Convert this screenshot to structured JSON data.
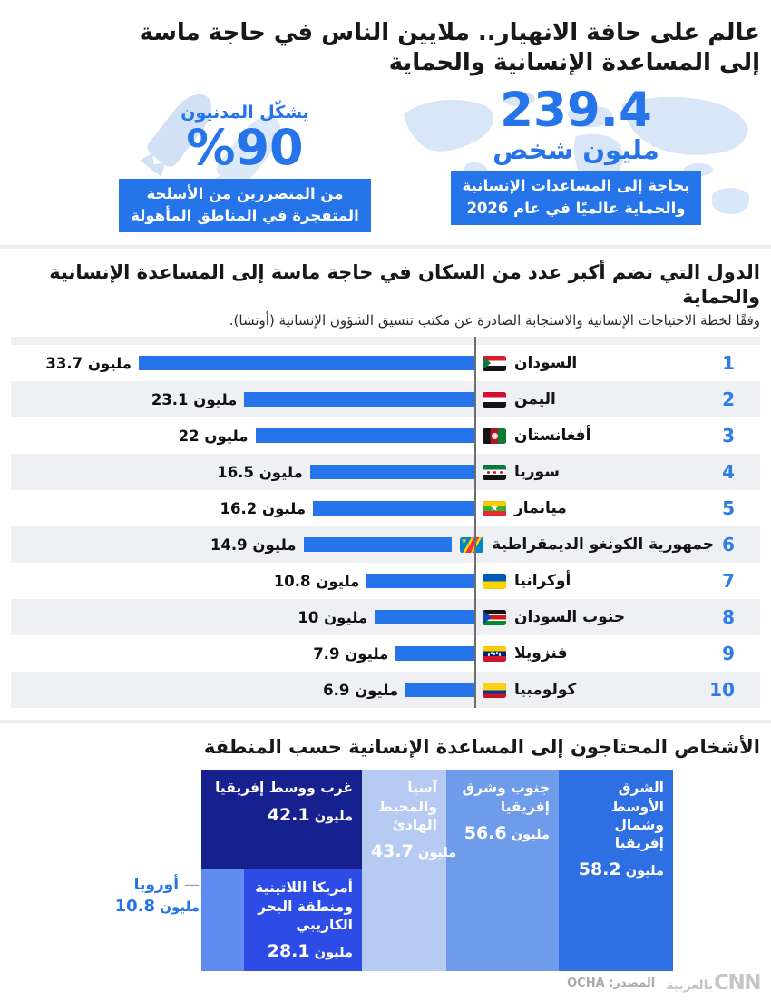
{
  "page": {
    "title": "عالم على حافة الانهيار.. ملايين الناس في حاجة ماسة إلى المساعدة الإنسانية والحماية"
  },
  "colors": {
    "accent_blue": "#2574e9",
    "pale_blue": "#d6e3f6",
    "row_stripe": "#eef0f3",
    "rank_blue": "#2e7ce8"
  },
  "stats": {
    "global": {
      "number": "239.4",
      "unit": "مليون شخص",
      "caption_line1": "بحاجة إلى المساعدات الإنسانية",
      "caption_line2": "والحماية عالميًا في عام 2026"
    },
    "civilians": {
      "lead": "يشكّل المدنيون",
      "number": "%90",
      "caption_line1": "من المتضررين من الأسلحة",
      "caption_line2": "المتفجرة في المناطق المأهولة"
    }
  },
  "chart_data": [
    {
      "type": "bar",
      "orientation": "horizontal-rtl",
      "title": "الدول التي تضم أكبر عدد من السكان في حاجة ماسة إلى المساعدة الإنسانية والحماية",
      "subtitle": "وفقًا لخطة الاحتياجات الإنسانية والاستجابة الصادرة عن مكتب تنسيق الشؤون الإنسانية (أوتشا).",
      "unit": "مليون",
      "xlim": [
        0,
        33.7
      ],
      "grid": false,
      "bar_color": "#2574e9",
      "categories": [
        "السودان",
        "اليمن",
        "أفغانستان",
        "سوريا",
        "ميانمار",
        "جمهورية الكونغو الديمقراطية",
        "أوكرانيا",
        "جنوب السودان",
        "فنزويلا",
        "كولومبيا"
      ],
      "values": [
        33.7,
        23.1,
        22,
        16.5,
        16.2,
        14.9,
        10.8,
        10,
        7.9,
        6.9
      ],
      "rows": [
        {
          "rank": "1",
          "name": "السودان",
          "flag": "sudan",
          "value": 33.7
        },
        {
          "rank": "2",
          "name": "اليمن",
          "flag": "yemen",
          "value": 23.1
        },
        {
          "rank": "3",
          "name": "أفغانستان",
          "flag": "afghanistan",
          "value": 22
        },
        {
          "rank": "4",
          "name": "سوريا",
          "flag": "syria",
          "value": 16.5
        },
        {
          "rank": "5",
          "name": "ميانمار",
          "flag": "myanmar",
          "value": 16.2
        },
        {
          "rank": "6",
          "name": "جمهورية الكونغو الديمقراطية",
          "flag": "drc",
          "value": 14.9
        },
        {
          "rank": "7",
          "name": "أوكرانيا",
          "flag": "ukraine",
          "value": 10.8
        },
        {
          "rank": "8",
          "name": "جنوب السودان",
          "flag": "south-sudan",
          "value": 10
        },
        {
          "rank": "9",
          "name": "فنزويلا",
          "flag": "venezuela",
          "value": 7.9
        },
        {
          "rank": "10",
          "name": "كولومبيا",
          "flag": "colombia",
          "value": 6.9
        }
      ]
    },
    {
      "type": "treemap",
      "title": "الأشخاص المحتاجون إلى المساعدة الإنسانية حسب المنطقة",
      "unit": "مليون",
      "regions": [
        {
          "key": "mena",
          "name": "الشرق الأوسط وشمال إفريقيا",
          "value": 58.2,
          "color": "#2e6fe4"
        },
        {
          "key": "south_east",
          "name": "جنوب وشرق إفريقيا",
          "value": 56.6,
          "color": "#6f9cea"
        },
        {
          "key": "asia",
          "name": "آسيا والمحيط الهادئ",
          "value": 43.7,
          "color": "#b7cbf2"
        },
        {
          "key": "west_central",
          "name": "غرب ووسط إفريقيا",
          "value": 42.1,
          "color": "#17208f"
        },
        {
          "key": "latam",
          "name": "أمريكا اللاتينية ومنطقة البحر الكاريبي",
          "value": 28.1,
          "color": "#2d4ce5"
        },
        {
          "key": "europe",
          "name": "أوروبا",
          "value": 10.8,
          "color": "#5e8cf0",
          "label_outside": true
        }
      ]
    }
  ],
  "footer": {
    "source": "المصدر: OCHA",
    "logo_ar": "بالعربية",
    "logo_cnn": "CNN"
  }
}
